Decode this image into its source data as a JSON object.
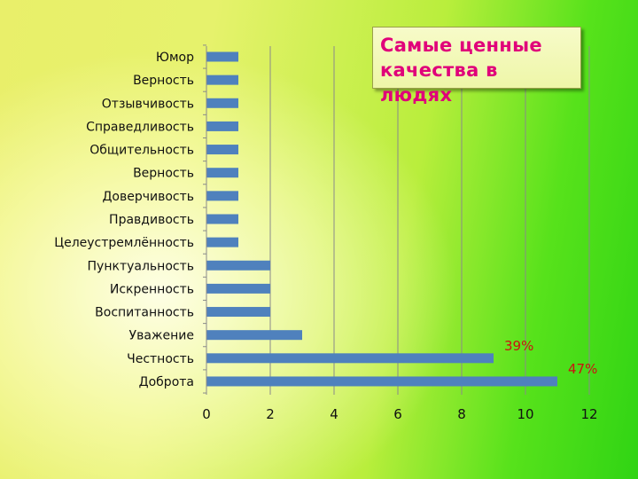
{
  "chart_data": {
    "type": "bar",
    "orientation": "horizontal",
    "title": "Самые ценные качества в людях",
    "categories": [
      "Юмор",
      "Верность",
      "Отзывчивость",
      "Справедливость",
      "Общительность",
      "Верность",
      "Доверчивость",
      "Правдивость",
      "Целеустремлённость",
      "Пунктуальность",
      "Искренность",
      "Воспитанность",
      "Уважение",
      "Честность",
      "Доброта"
    ],
    "values": [
      1,
      1,
      1,
      1,
      1,
      1,
      1,
      1,
      1,
      2,
      2,
      2,
      3,
      9,
      11
    ],
    "xlim": [
      0,
      12
    ],
    "xticks": [
      "0",
      "2",
      "4",
      "6",
      "8",
      "10",
      "12"
    ],
    "grid": "vertical",
    "bar_color": "#4f81bd",
    "annotations": [
      {
        "category_index": 13,
        "text": "39%",
        "color": "#cc1111"
      },
      {
        "category_index": 14,
        "text": "47%",
        "color": "#cc1111"
      }
    ]
  }
}
